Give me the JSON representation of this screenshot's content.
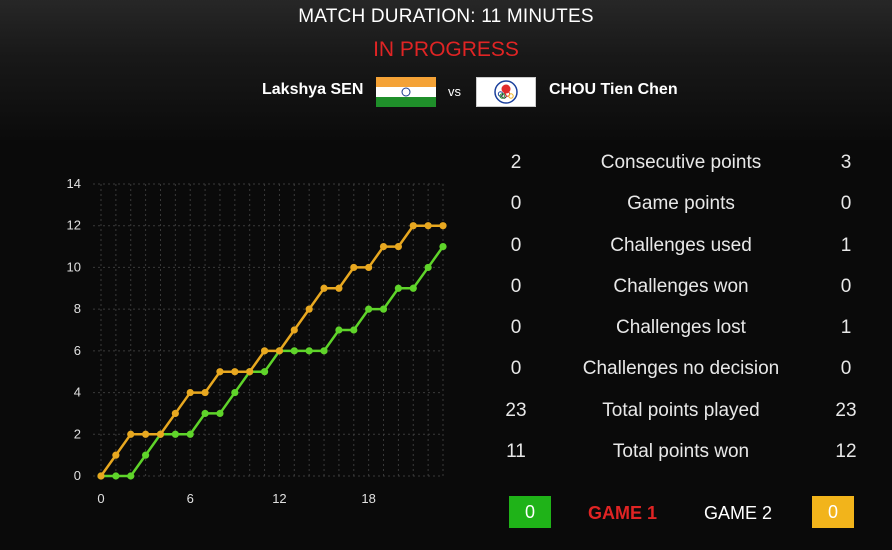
{
  "header": {
    "duration": "MATCH DURATION: 11 MINUTES",
    "status": "IN PROGRESS"
  },
  "players": {
    "p1": {
      "name": "Lakshya SEN",
      "flag_icon": "india-flag-icon"
    },
    "vs": "vs",
    "p2": {
      "name": "CHOU Tien Chen",
      "flag_icon": "chinese-taipei-flag-icon"
    }
  },
  "colors": {
    "p1": "#5fd42a",
    "p2": "#e8a820",
    "status": "#e02424",
    "p1_box": "#1fb318",
    "p2_box": "#f2b41b"
  },
  "stats": [
    {
      "label": "Consecutive points",
      "p1": "2",
      "p2": "3"
    },
    {
      "label": "Game points",
      "p1": "0",
      "p2": "0"
    },
    {
      "label": "Challenges used",
      "p1": "0",
      "p2": "1"
    },
    {
      "label": "Challenges won",
      "p1": "0",
      "p2": "0"
    },
    {
      "label": "Challenges lost",
      "p1": "0",
      "p2": "1"
    },
    {
      "label": "Challenges no decision",
      "p1": "0",
      "p2": "0"
    },
    {
      "label": "Total points played",
      "p1": "23",
      "p2": "23"
    },
    {
      "label": "Total points won",
      "p1": "11",
      "p2": "12"
    }
  ],
  "games": {
    "p1_score": "0",
    "game1": "GAME 1",
    "game2": "GAME 2",
    "p2_score": "0"
  },
  "chart_data": {
    "type": "line",
    "x": [
      0,
      1,
      2,
      3,
      4,
      5,
      6,
      7,
      8,
      9,
      10,
      11,
      12,
      13,
      14,
      15,
      16,
      17,
      18,
      19,
      20,
      21,
      22,
      23
    ],
    "xticks": [
      "0",
      "6",
      "12",
      "18"
    ],
    "xtick_values": [
      0,
      6,
      12,
      18
    ],
    "yticks": [
      "0",
      "2",
      "4",
      "6",
      "8",
      "10",
      "12",
      "14"
    ],
    "xlim": [
      0,
      23
    ],
    "ylim": [
      0,
      14
    ],
    "grid": true,
    "series": [
      {
        "values": [
          0,
          0,
          0,
          1,
          2,
          2,
          2,
          3,
          3,
          4,
          5,
          5,
          6,
          6,
          6,
          6,
          7,
          7,
          8,
          8,
          9,
          9,
          10,
          11
        ]
      },
      {
        "values": [
          0,
          1,
          2,
          2,
          2,
          3,
          4,
          4,
          5,
          5,
          5,
          6,
          6,
          7,
          8,
          9,
          9,
          10,
          10,
          11,
          11,
          12,
          12,
          12
        ]
      }
    ]
  }
}
